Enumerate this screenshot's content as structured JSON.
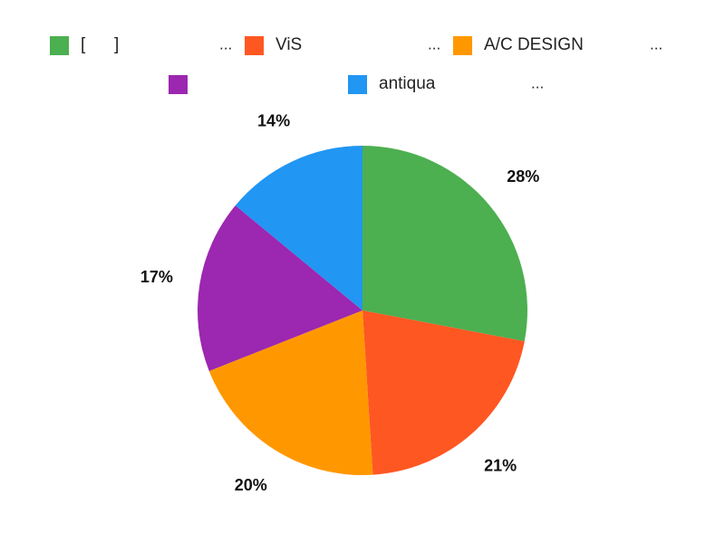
{
  "chart_data": {
    "type": "pie",
    "legend_position": "top",
    "slices": [
      {
        "label": "[      ]",
        "value": 28,
        "value_label": "28%",
        "color": "#4caf50"
      },
      {
        "label": "ViS",
        "value": 21,
        "value_label": "21%",
        "color": "#ff5722"
      },
      {
        "label": "A/C DESIGN",
        "value": 20,
        "value_label": "20%",
        "color": "#ff9800"
      },
      {
        "label": "",
        "value": 17,
        "value_label": "17%",
        "color": "#9c27b0"
      },
      {
        "label": "antiqua",
        "value": 14,
        "value_label": "14%",
        "color": "#2196f3"
      }
    ],
    "legend_ellipsis": "..."
  }
}
